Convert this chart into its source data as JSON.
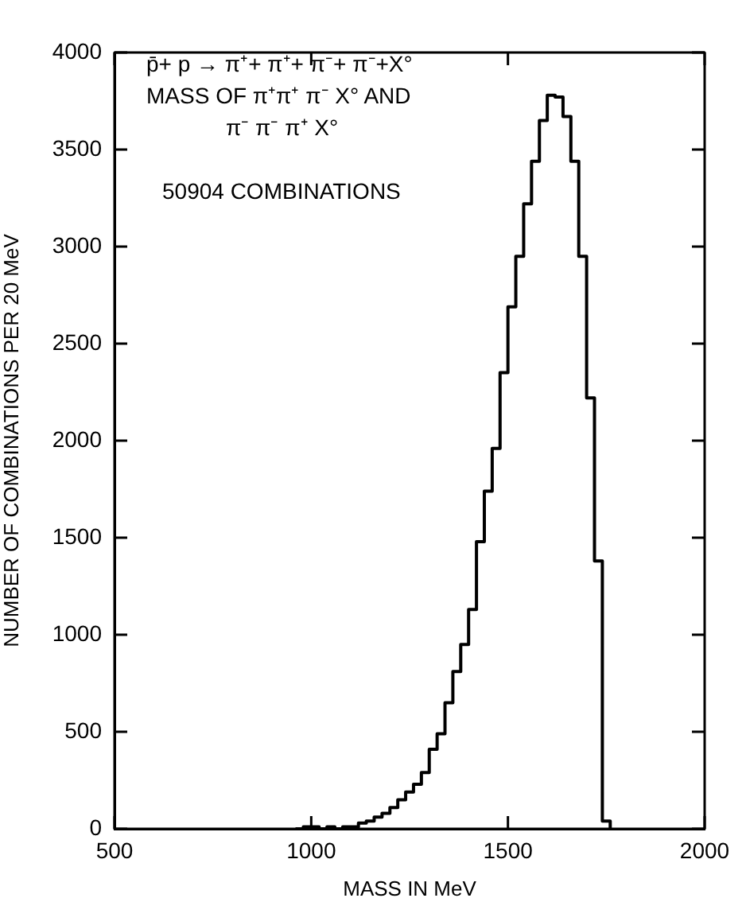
{
  "chart_data": {
    "type": "histogram",
    "xlabel": "MASS IN MeV",
    "ylabel": "NUMBER OF COMBINATIONS PER 20 MeV",
    "annotations": [
      "p̄+ p → π⁺+ π⁺+ π⁻+ π⁻+X°",
      "MASS OF π⁺π⁺ π⁻ X° AND",
      "π⁻ π⁻ π⁺ X°",
      "50904 COMBINATIONS"
    ],
    "bins": [
      960,
      980,
      1000,
      1020,
      1040,
      1060,
      1080,
      1100,
      1120,
      1140,
      1160,
      1180,
      1200,
      1220,
      1240,
      1260,
      1280,
      1300,
      1320,
      1340,
      1360,
      1380,
      1400,
      1420,
      1440,
      1460,
      1480,
      1500,
      1520,
      1540,
      1560,
      1580,
      1600,
      1620,
      1640,
      1660,
      1680,
      1700,
      1720,
      1740,
      1760
    ],
    "values": [
      0,
      10,
      10,
      0,
      10,
      0,
      10,
      10,
      30,
      40,
      60,
      80,
      110,
      150,
      190,
      230,
      290,
      410,
      490,
      650,
      810,
      950,
      1130,
      1480,
      1740,
      1960,
      2350,
      2690,
      2950,
      3220,
      3440,
      3650,
      3780,
      3770,
      3670,
      3440,
      2950,
      2220,
      1380,
      40
    ],
    "color": "#000000",
    "xlim": [
      500,
      2000
    ],
    "xticks": [
      500,
      1000,
      1500,
      2000
    ],
    "ylim": [
      0,
      4000
    ],
    "yticks": [
      0,
      500,
      1000,
      1500,
      2000,
      2500,
      3000,
      3500,
      4000
    ],
    "grid": false,
    "legend": false
  }
}
